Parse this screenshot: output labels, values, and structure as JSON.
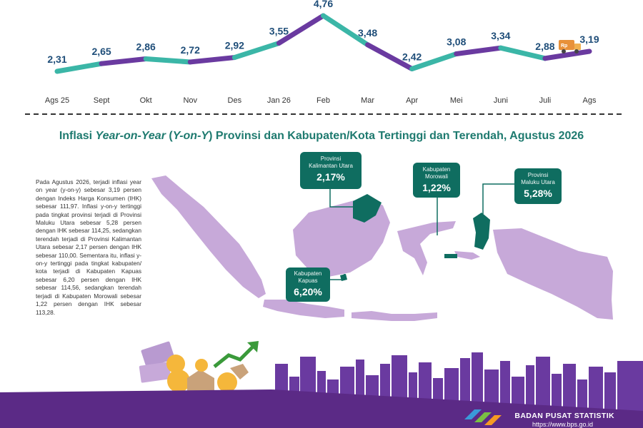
{
  "chart_data": {
    "type": "line",
    "categories": [
      "Ags  25",
      "Sept",
      "Okt",
      "Nov",
      "Des",
      "Jan 26",
      "Feb",
      "Mar",
      "Apr",
      "Mei",
      "Juni",
      "Juli",
      "Ags"
    ],
    "values": [
      2.31,
      2.65,
      2.86,
      2.72,
      2.92,
      3.55,
      4.76,
      3.48,
      2.42,
      3.08,
      3.34,
      2.88,
      3.19
    ],
    "value_labels": [
      "2,31",
      "2,65",
      "2,86",
      "2,72",
      "2,92",
      "3,55",
      "4,76",
      "3,48",
      "2,42",
      "3,08",
      "3,34",
      "2,88",
      "3,19"
    ],
    "colors": {
      "teal": "#3bb6a7",
      "purple": "#6a3aa0"
    }
  },
  "title": {
    "part1": "Inflasi ",
    "part2": "Year-on-Year",
    "part3": " (",
    "part4": "Y-on-Y",
    "part5": ") Provinsi dan Kabupaten/Kota Tertinggi dan Terendah, Agustus 2026"
  },
  "paragraph": "Pada Agustus 2026, terjadi inflasi year on year (y-on-y) sebesar 3,19 persen dengan Indeks Harga Konsumen (IHK) sebesar 111,97. Inflasi y-on-y tertinggi pada tingkat provinsi terjadi di Provinsi Maluku Utara sebesar 5,28 persen dengan IHK sebesar 114,25, sedangkan terendah terjadi di Provinsi Kalimantan Utara sebesar 2,17 persen dengan IHK sebesar 110,00. Sementara itu, inflasi y-on-y tertinggi pada tingkat kabupaten/ kota terjadi di Kabupaten Kapuas sebesar 6,20 persen dengan IHK sebesar 114,56, sedangkan terendah terjadi di Kabupaten Morowali sebesar 1,22 persen dengan IHK sebesar 113,28.",
  "callouts": {
    "kaltara": {
      "name1": "Provinsi",
      "name2": "Kalimantan Utara",
      "value": "2,17%"
    },
    "morowali": {
      "name1": "Kabupaten",
      "name2": "Morowali",
      "value": "1,22%"
    },
    "malut": {
      "name1": "Provinsi",
      "name2": "Maluku Utara",
      "value": "5,28%"
    },
    "kapuas": {
      "name1": "Kabupaten",
      "name2": "Kapuas",
      "value": "6,20%"
    }
  },
  "truck_label": "Rp",
  "footer": {
    "org": "BADAN PUSAT STATISTIK",
    "url": "https://www.bps.go.id"
  },
  "colors": {
    "map": "#c7a9d9",
    "highlight": "#0f6d60",
    "footer": "#5b2a86",
    "skyline": "#6a3aa0"
  }
}
